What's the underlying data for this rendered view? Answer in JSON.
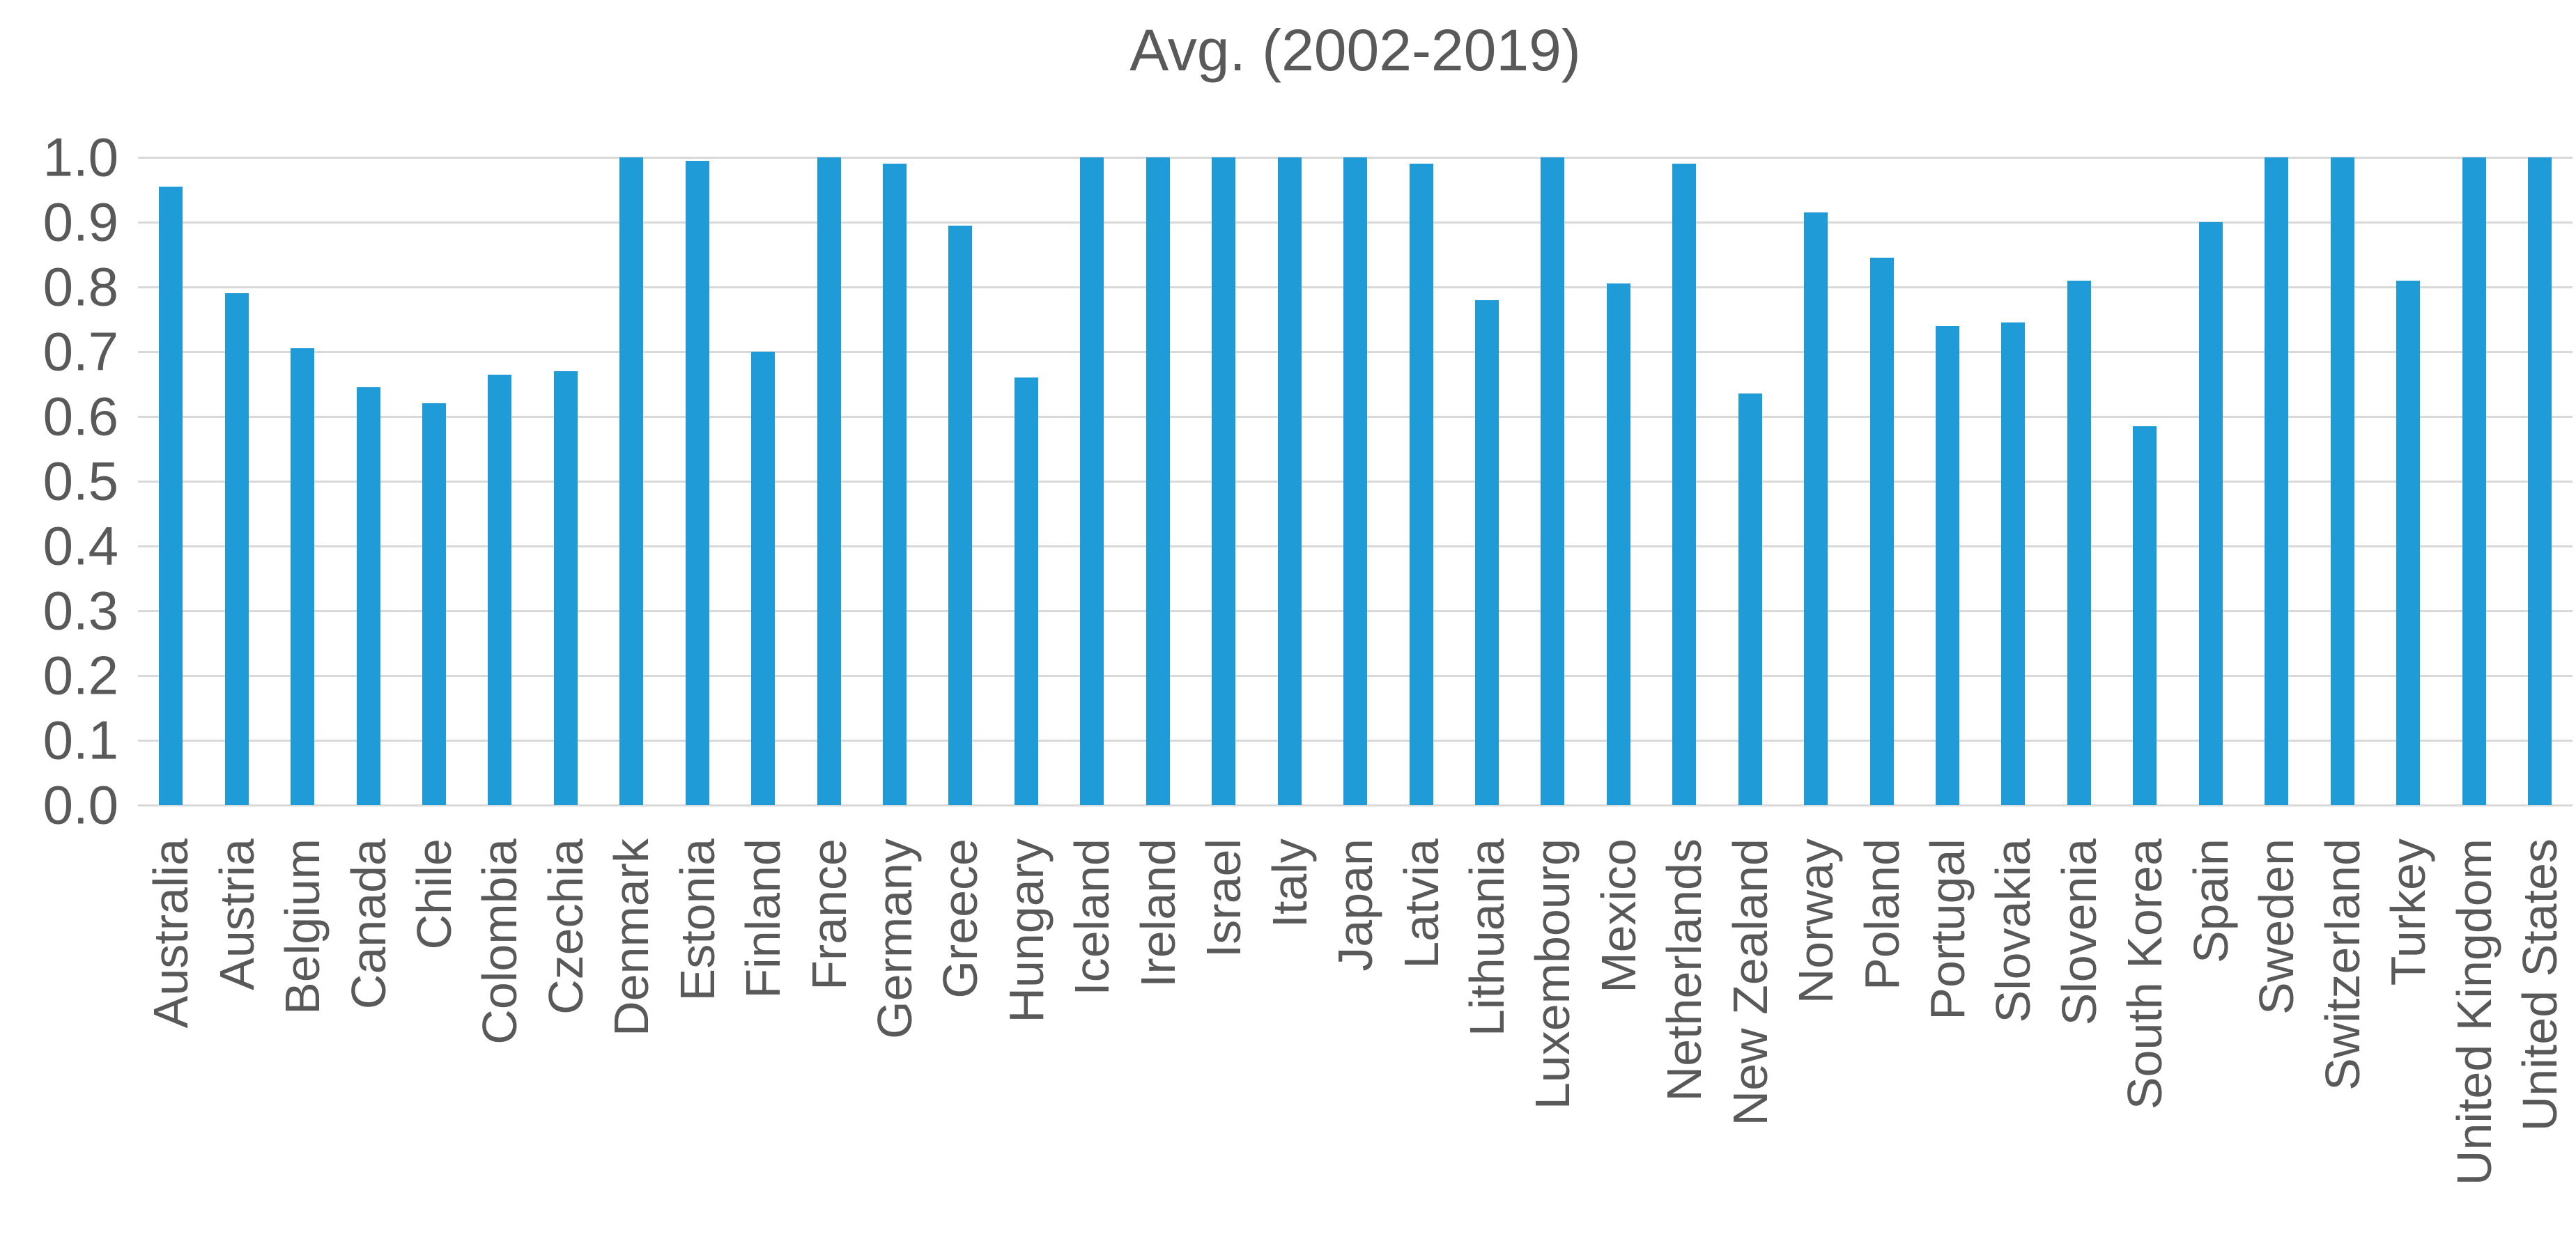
{
  "title": "Avg. (2002-2019)",
  "chart_data": {
    "type": "bar",
    "title": "Avg. (2002-2019)",
    "xlabel": "",
    "ylabel": "",
    "ylim": [
      0.0,
      1.0
    ],
    "grid": "horizontal-gridlines",
    "legend": "none",
    "bar_color": "#1f9bd7",
    "gridline_color": "#d9d9d9",
    "text_color": "#595959",
    "yticks": [
      "1.0",
      "0.9",
      "0.8",
      "0.7",
      "0.6",
      "0.5",
      "0.4",
      "0.3",
      "0.2",
      "0.1",
      "0.0"
    ],
    "categories": [
      "Australia",
      "Austria",
      "Belgium",
      "Canada",
      "Chile",
      "Colombia",
      "Czechia",
      "Denmark",
      "Estonia",
      "Finland",
      "France",
      "Germany",
      "Greece",
      "Hungary",
      "Iceland",
      "Ireland",
      "Israel",
      "Italy",
      "Japan",
      "Latvia",
      "Lithuania",
      "Luxembourg",
      "Mexico",
      "Netherlands",
      "New Zealand",
      "Norway",
      "Poland",
      "Portugal",
      "Slovakia",
      "Slovenia",
      "South Korea",
      "Spain",
      "Sweden",
      "Switzerland",
      "Turkey",
      "United Kingdom",
      "United States"
    ],
    "values": [
      0.955,
      0.79,
      0.705,
      0.645,
      0.62,
      0.665,
      0.67,
      1.0,
      0.995,
      0.7,
      1.0,
      0.99,
      0.895,
      0.66,
      1.0,
      1.0,
      1.0,
      1.0,
      1.0,
      0.99,
      0.78,
      1.0,
      0.805,
      0.99,
      0.635,
      0.915,
      0.845,
      0.74,
      0.745,
      0.81,
      0.585,
      0.9,
      1.0,
      1.0,
      0.81,
      1.0,
      1.0
    ]
  }
}
